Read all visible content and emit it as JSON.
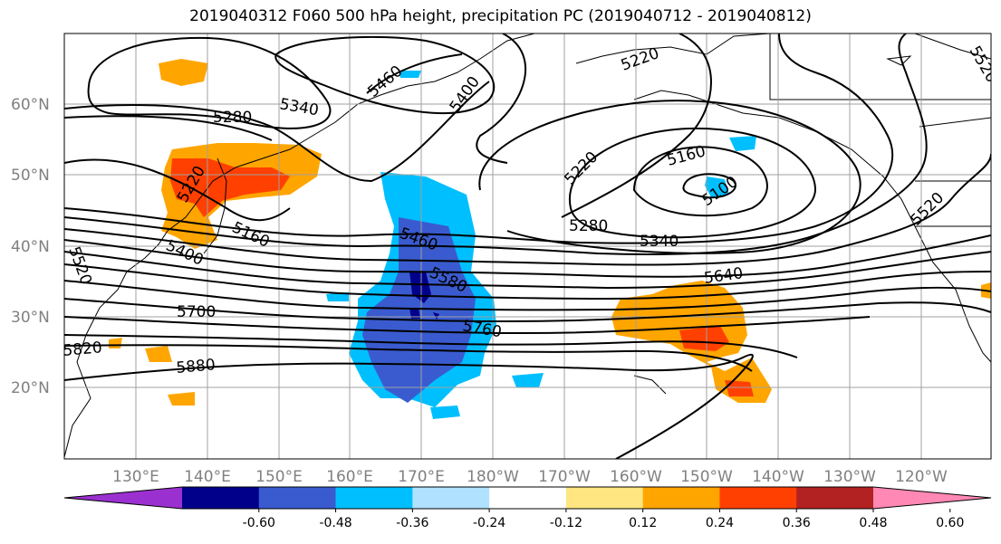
{
  "title": "2019040312 F060 500 hPa height, precipitation PC (2019040712 - 2019040812)",
  "lat_ticks": [
    "20°N",
    "30°N",
    "40°N",
    "50°N",
    "60°N"
  ],
  "lon_ticks": [
    "130°E",
    "140°E",
    "150°E",
    "160°E",
    "170°E",
    "180°W",
    "170°W",
    "160°W",
    "150°W",
    "140°W",
    "130°W",
    "120°W"
  ],
  "colorbar": {
    "ticks": [
      "-0.60",
      "-0.48",
      "-0.36",
      "-0.24",
      "-0.12",
      "0.12",
      "0.24",
      "0.36",
      "0.48",
      "0.60"
    ],
    "colors": [
      "#9b30d0",
      "#00008b",
      "#3a5bcf",
      "#00bfff",
      "#b0e2ff",
      "#ffffff",
      "#ffe680",
      "#ffa500",
      "#ff4000",
      "#b22222",
      "#ff88b4"
    ]
  },
  "contour_labels": [
    "5280",
    "5340",
    "5460",
    "5400",
    "5220",
    "5160",
    "5100",
    "5220",
    "5160",
    "5220",
    "5280",
    "5340",
    "5460",
    "5580",
    "5640",
    "5760",
    "5700",
    "5820",
    "5880",
    "5400",
    "5520",
    "5520",
    "5520"
  ]
}
